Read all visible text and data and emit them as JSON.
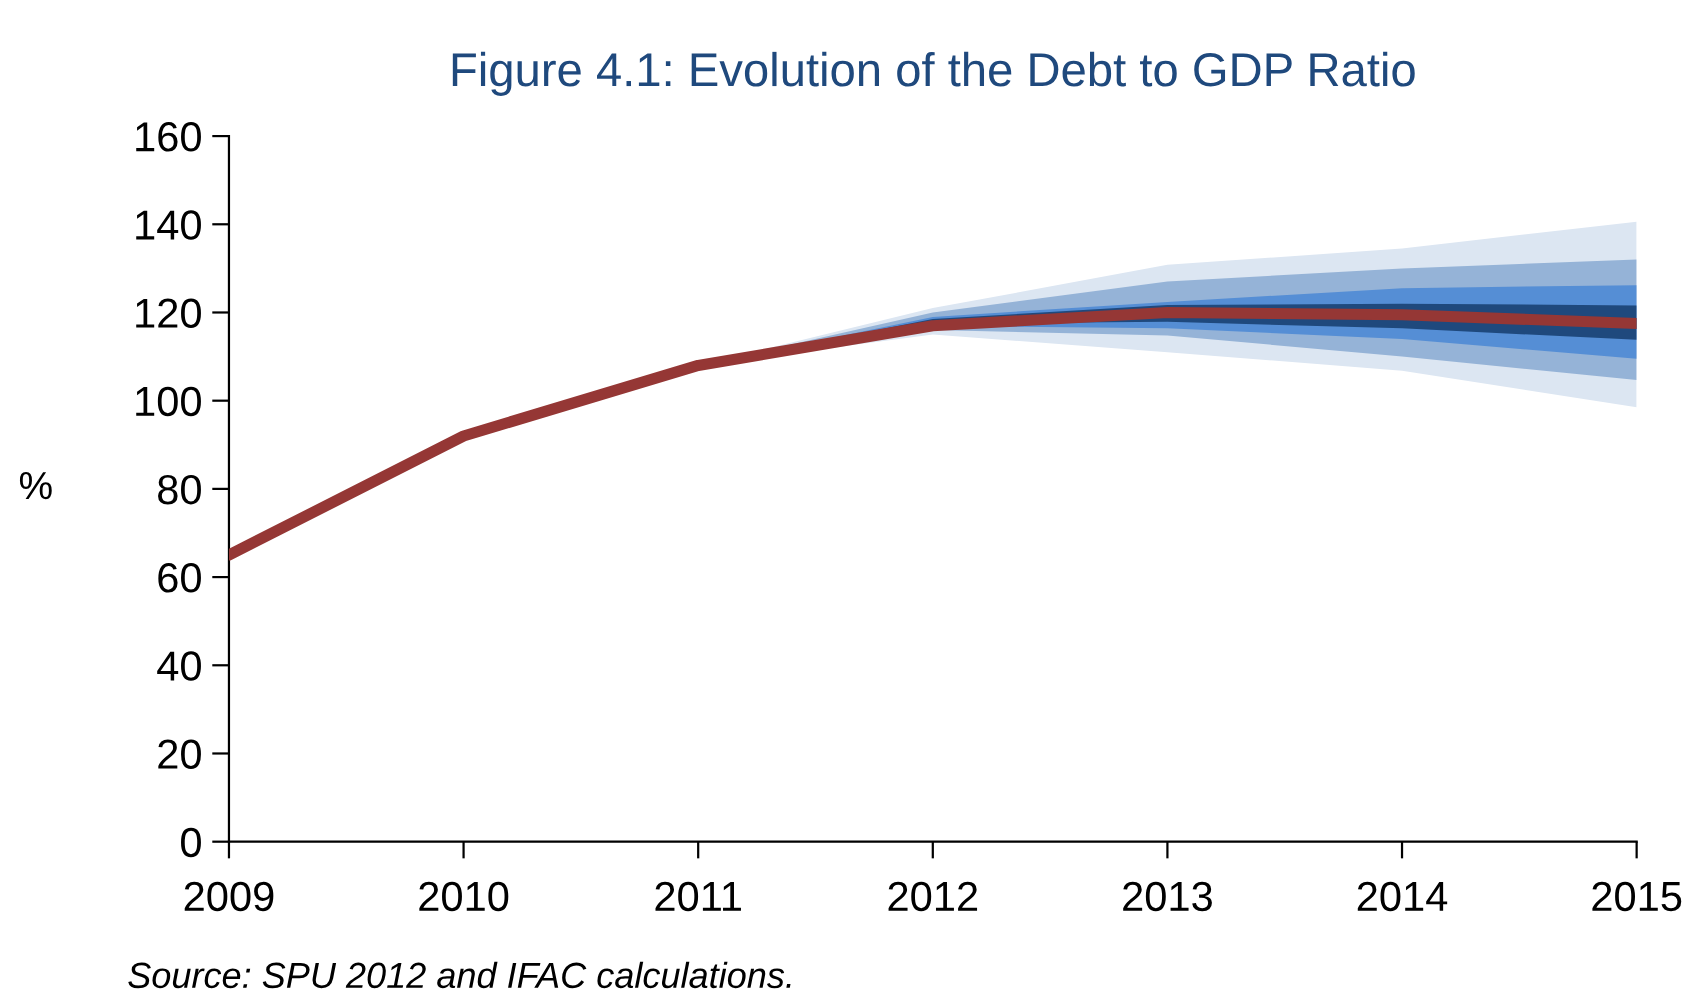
{
  "chart_data": {
    "type": "line",
    "title": "Figure 4.1: Evolution of the Debt to GDP Ratio",
    "ylabel": "%",
    "x": [
      2009,
      2010,
      2011,
      2012,
      2013,
      2014,
      2015
    ],
    "series": [
      {
        "type": "area",
        "color": "#dce6f2",
        "x": [
          2011,
          2012,
          2013,
          2014,
          2015
        ],
        "values": [
          null,
          null,
          null,
          null,
          null
        ],
        "lower": [
          108,
          115,
          111,
          106.8,
          98.5
        ],
        "upper": [
          108,
          121,
          130.8,
          134.5,
          140.6
        ]
      },
      {
        "type": "area",
        "color": "#95b3d7",
        "x": [
          2011,
          2012,
          2013,
          2014,
          2015
        ],
        "values": [
          null,
          null,
          null,
          null,
          null
        ],
        "lower": [
          108,
          116,
          114.8,
          110,
          104.7
        ],
        "upper": [
          108,
          120,
          127,
          130,
          132
        ]
      },
      {
        "type": "area",
        "color": "#558ed5",
        "x": [
          2011,
          2012,
          2013,
          2014,
          2015
        ],
        "values": [
          null,
          null,
          null,
          null,
          null
        ],
        "lower": [
          108,
          117,
          116.4,
          114,
          109.5
        ],
        "upper": [
          108,
          119,
          122.4,
          125.5,
          126.2
        ]
      },
      {
        "type": "area",
        "color": "#1f497d",
        "x": [
          2011,
          2012,
          2013,
          2014,
          2015
        ],
        "values": [
          null,
          null,
          null,
          null,
          null
        ],
        "lower": [
          108,
          117.5,
          117.9,
          116.4,
          113.8
        ],
        "upper": [
          108,
          118.5,
          121.7,
          122,
          121.6
        ]
      },
      {
        "color": "#953735",
        "values": [
          65,
          92,
          108,
          117,
          120,
          119.5,
          117.5
        ]
      }
    ],
    "xlim": [
      2009,
      2015
    ],
    "xticks": [
      2009,
      2010,
      2011,
      2012,
      2013,
      2014,
      2015
    ],
    "ylim": [
      0,
      160
    ],
    "yticks": [
      0,
      20,
      40,
      60,
      80,
      100,
      120,
      140,
      160
    ],
    "grid": false,
    "legend": false,
    "annotations": [
      "Source: SPU 2012 and IFAC calculations."
    ]
  }
}
